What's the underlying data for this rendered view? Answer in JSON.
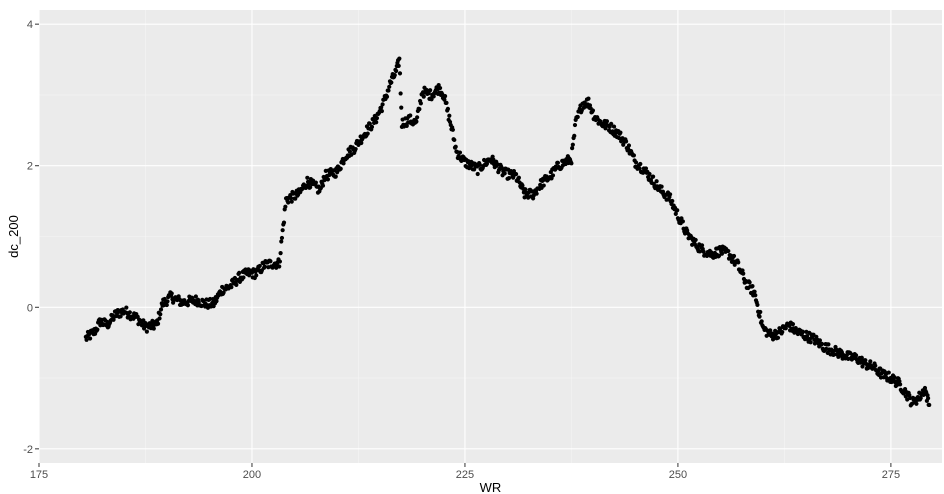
{
  "colors": {
    "panel_background": "#ebebeb",
    "grid_major": "#ffffff",
    "grid_minor": "#f5f5f5",
    "point": "#000000",
    "tick_text": "#4d4d4d",
    "axis_title_text": "#000000"
  },
  "chart_data": {
    "type": "scatter",
    "title": "",
    "xlabel": "WR",
    "ylabel": "dc_200",
    "xlim": [
      175,
      281
    ],
    "ylim": [
      -2.2,
      4.2
    ],
    "x_ticks": [
      175,
      200,
      225,
      250,
      275
    ],
    "y_ticks": [
      -2,
      0,
      2,
      4
    ],
    "x_tick_labels": [
      "175",
      "200",
      "225",
      "250",
      "275"
    ],
    "y_tick_labels": [
      "-2",
      "0",
      "2",
      "4"
    ],
    "grid": true,
    "legend": "none",
    "trace_points": [
      [
        180.5,
        -0.44
      ],
      [
        181.5,
        -0.35
      ],
      [
        182.2,
        -0.2
      ],
      [
        183.0,
        -0.25
      ],
      [
        184.0,
        -0.1
      ],
      [
        185.0,
        -0.05
      ],
      [
        186.5,
        -0.15
      ],
      [
        187.5,
        -0.28
      ],
      [
        188.8,
        -0.25
      ],
      [
        189.5,
        0.05
      ],
      [
        190.5,
        0.15
      ],
      [
        191.8,
        0.07
      ],
      [
        193.5,
        0.1
      ],
      [
        194.5,
        0.05
      ],
      [
        195.5,
        0.05
      ],
      [
        196.5,
        0.25
      ],
      [
        197.5,
        0.3
      ],
      [
        198.5,
        0.42
      ],
      [
        199.5,
        0.48
      ],
      [
        200.5,
        0.48
      ],
      [
        201.5,
        0.6
      ],
      [
        202.5,
        0.62
      ],
      [
        203.2,
        0.62
      ],
      [
        204.0,
        1.52
      ],
      [
        205.5,
        1.6
      ],
      [
        206.5,
        1.78
      ],
      [
        208.0,
        1.65
      ],
      [
        208.5,
        1.85
      ],
      [
        210.0,
        1.92
      ],
      [
        211.0,
        2.15
      ],
      [
        212.0,
        2.25
      ],
      [
        213.5,
        2.5
      ],
      [
        214.5,
        2.65
      ],
      [
        215.5,
        2.9
      ],
      [
        216.2,
        3.15
      ],
      [
        217.0,
        3.35
      ],
      [
        217.3,
        3.5
      ],
      [
        217.6,
        2.6
      ],
      [
        218.5,
        2.65
      ],
      [
        219.3,
        2.6
      ],
      [
        220.0,
        3.05
      ],
      [
        221.0,
        3.0
      ],
      [
        222.0,
        3.1
      ],
      [
        222.5,
        3.0
      ],
      [
        223.0,
        2.75
      ],
      [
        223.5,
        2.5
      ],
      [
        224.0,
        2.2
      ],
      [
        225.0,
        2.05
      ],
      [
        226.5,
        1.95
      ],
      [
        228.0,
        2.1
      ],
      [
        229.5,
        1.9
      ],
      [
        231.0,
        1.85
      ],
      [
        232.0,
        1.6
      ],
      [
        233.0,
        1.6
      ],
      [
        234.0,
        1.75
      ],
      [
        235.0,
        1.85
      ],
      [
        236.0,
        2.0
      ],
      [
        237.5,
        2.1
      ],
      [
        238.0,
        2.6
      ],
      [
        238.8,
        2.88
      ],
      [
        239.5,
        2.9
      ],
      [
        240.2,
        2.7
      ],
      [
        241.0,
        2.6
      ],
      [
        242.0,
        2.55
      ],
      [
        243.0,
        2.45
      ],
      [
        244.0,
        2.3
      ],
      [
        245.0,
        2.05
      ],
      [
        246.0,
        1.95
      ],
      [
        247.0,
        1.8
      ],
      [
        248.0,
        1.65
      ],
      [
        249.0,
        1.55
      ],
      [
        250.0,
        1.3
      ],
      [
        251.0,
        1.05
      ],
      [
        252.0,
        0.9
      ],
      [
        253.0,
        0.8
      ],
      [
        254.0,
        0.75
      ],
      [
        255.0,
        0.8
      ],
      [
        256.0,
        0.75
      ],
      [
        257.0,
        0.6
      ],
      [
        258.0,
        0.35
      ],
      [
        259.0,
        0.2
      ],
      [
        260.0,
        -0.3
      ],
      [
        261.0,
        -0.4
      ],
      [
        262.0,
        -0.35
      ],
      [
        263.0,
        -0.25
      ],
      [
        264.0,
        -0.35
      ],
      [
        265.0,
        -0.4
      ],
      [
        266.0,
        -0.45
      ],
      [
        267.0,
        -0.55
      ],
      [
        268.0,
        -0.6
      ],
      [
        269.0,
        -0.65
      ],
      [
        270.0,
        -0.7
      ],
      [
        271.0,
        -0.72
      ],
      [
        272.0,
        -0.8
      ],
      [
        273.0,
        -0.85
      ],
      [
        274.0,
        -0.95
      ],
      [
        275.0,
        -1.0
      ],
      [
        276.0,
        -1.08
      ],
      [
        277.0,
        -1.25
      ],
      [
        277.5,
        -1.35
      ],
      [
        278.0,
        -1.3
      ],
      [
        278.5,
        -1.25
      ],
      [
        279.0,
        -1.15
      ],
      [
        279.3,
        -1.3
      ],
      [
        279.5,
        -1.38
      ]
    ]
  }
}
